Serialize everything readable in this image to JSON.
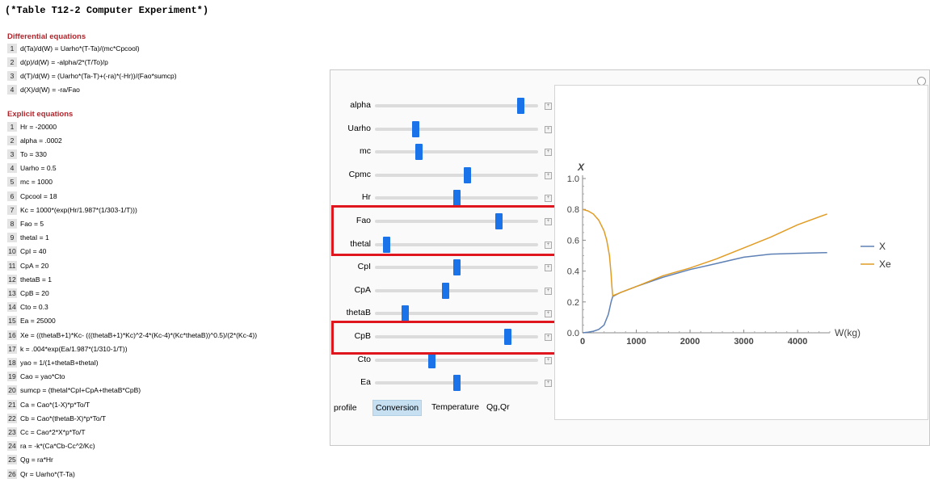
{
  "header": {
    "title": "(*Table T12-2 Computer Experiment*)"
  },
  "diff": {
    "heading": "Differential equations",
    "eq": [
      {
        "n": "1",
        "t": "d(Ta)/d(W) = Uarho*(T-Ta)/(mc*Cpcool)"
      },
      {
        "n": "2",
        "t": "d(p)/d(W) = -alpha/2*(T/To)/p"
      },
      {
        "n": "3",
        "t": "d(T)/d(W) = (Uarho*(Ta-T)+(-ra)*(-Hr))/(Fao*sumcp)"
      },
      {
        "n": "4",
        "t": "d(X)/d(W) = -ra/Fao"
      }
    ]
  },
  "expl": {
    "heading": "Explicit equations",
    "eq": [
      {
        "n": "1",
        "t": "Hr = -20000"
      },
      {
        "n": "2",
        "t": "alpha = .0002"
      },
      {
        "n": "3",
        "t": "To = 330"
      },
      {
        "n": "4",
        "t": "Uarho = 0.5"
      },
      {
        "n": "5",
        "t": "mc = 1000"
      },
      {
        "n": "6",
        "t": "Cpcool = 18"
      },
      {
        "n": "7",
        "t": "Kc = 1000*(exp(Hr/1.987*(1/303-1/T)))"
      },
      {
        "n": "8",
        "t": "Fao = 5"
      },
      {
        "n": "9",
        "t": "thetaI = 1"
      },
      {
        "n": "10",
        "t": "CpI = 40"
      },
      {
        "n": "11",
        "t": "CpA = 20"
      },
      {
        "n": "12",
        "t": "thetaB = 1"
      },
      {
        "n": "13",
        "t": "CpB = 20"
      },
      {
        "n": "14",
        "t": "Cto = 0.3"
      },
      {
        "n": "15",
        "t": "Ea = 25000"
      },
      {
        "n": "16",
        "t": "Xe = ((thetaB+1)*Kc- (((thetaB+1)*Kc)^2-4*(Kc-4)*(Kc*thetaB))^0.5)/(2*(Kc-4))"
      },
      {
        "n": "17",
        "t": "k = .004*exp(Ea/1.987*(1/310-1/T))"
      },
      {
        "n": "18",
        "t": "yao = 1/(1+thetaB+thetaI)"
      },
      {
        "n": "19",
        "t": "Cao = yao*Cto"
      },
      {
        "n": "20",
        "t": "sumcp = (thetaI*CpI+CpA+thetaB*CpB)"
      },
      {
        "n": "21",
        "t": "Ca = Cao*(1-X)*p*To/T"
      },
      {
        "n": "22",
        "t": "Cb = Cao*(thetaB-X)*p*To/T"
      },
      {
        "n": "23",
        "t": "Cc = Cao*2*X*p*To/T"
      },
      {
        "n": "24",
        "t": "ra = -k*(Ca*Cb-Cc^2/Kc)"
      },
      {
        "n": "25",
        "t": "Qg = ra*Hr"
      },
      {
        "n": "26",
        "t": "Qr = Uarho*(T-Ta)"
      }
    ]
  },
  "sliders": [
    {
      "label": "alpha",
      "value": 0.91
    },
    {
      "label": "Uarho",
      "value": 0.24
    },
    {
      "label": "mc",
      "value": 0.26
    },
    {
      "label": "Cpmc",
      "value": 0.57
    },
    {
      "label": "Hr",
      "value": 0.5
    },
    {
      "label": "Fao",
      "value": 0.77
    },
    {
      "label": "thetal",
      "value": 0.05
    },
    {
      "label": "CpI",
      "value": 0.5
    },
    {
      "label": "CpA",
      "value": 0.43
    },
    {
      "label": "thetaB",
      "value": 0.17
    },
    {
      "label": "CpB",
      "value": 0.83
    },
    {
      "label": "Cto",
      "value": 0.34
    },
    {
      "label": "Ea",
      "value": 0.5
    }
  ],
  "profile": {
    "label": "profile",
    "options": [
      "Conversion",
      "Temperature",
      "Qg,Qr"
    ],
    "selected": "Conversion"
  },
  "chart_data": {
    "type": "line",
    "title": "",
    "xlabel": "W(kg)",
    "ylabel": "X",
    "xlim": [
      0,
      4600
    ],
    "ylim": [
      0,
      1.0
    ],
    "xticks": [
      0,
      1000,
      2000,
      3000,
      4000
    ],
    "yticks": [
      0.0,
      0.2,
      0.4,
      0.6,
      0.8,
      1.0
    ],
    "ytick_labels": [
      "0.0",
      "0.2",
      "0.4",
      "0.6",
      "0.8",
      "1.0"
    ],
    "legend_position": "right",
    "series": [
      {
        "name": "X",
        "color": "#5e81b5",
        "x": [
          0,
          100,
          200,
          300,
          400,
          480,
          530,
          560,
          700,
          1000,
          1500,
          2000,
          2500,
          3000,
          3500,
          4000,
          4550
        ],
        "y": [
          0,
          0.004,
          0.01,
          0.022,
          0.05,
          0.12,
          0.2,
          0.235,
          0.26,
          0.3,
          0.36,
          0.41,
          0.45,
          0.49,
          0.51,
          0.515,
          0.52
        ]
      },
      {
        "name": "Xe",
        "color": "#e19c24",
        "x": [
          0,
          100,
          200,
          300,
          400,
          450,
          500,
          530,
          545,
          560,
          700,
          1000,
          1500,
          2000,
          2500,
          3000,
          3500,
          4000,
          4550
        ],
        "y": [
          0.8,
          0.79,
          0.77,
          0.73,
          0.66,
          0.6,
          0.5,
          0.38,
          0.3,
          0.24,
          0.26,
          0.3,
          0.37,
          0.42,
          0.48,
          0.55,
          0.62,
          0.7,
          0.77
        ]
      }
    ]
  }
}
